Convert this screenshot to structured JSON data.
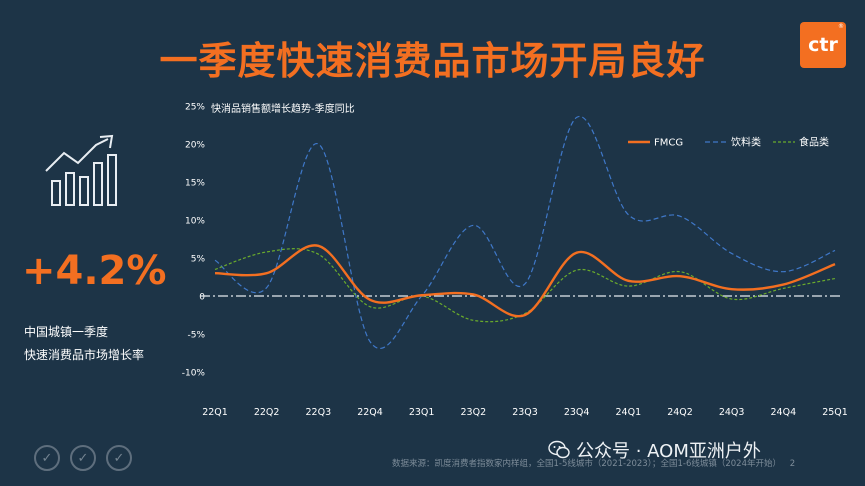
{
  "header": {
    "title": "一季度快速消费品市场开局良好",
    "logo_text": "ctr",
    "logo_mark": "®"
  },
  "left_panel": {
    "growth_icon": "bar-growth-arrow-icon",
    "big_value": "+4.2%",
    "desc_line1": "中国城镇一季度",
    "desc_line2": "快速消费品市场增长率"
  },
  "footer": {
    "source": "数据来源：凯度消费者指数家内样组，全国1-5线城市（2021-2023）；全国1-6线城镇（2024年开始）",
    "page_number": "2",
    "watermark": "公众号 · AOM亚洲户外",
    "watermark_icon": "wechat-icon",
    "badges": [
      "✓",
      "✓",
      "✓"
    ]
  },
  "colors": {
    "accent": "#f36f21",
    "background": "#1d3447",
    "fmcg": "#f36f21",
    "beverage": "#3f78c9",
    "food": "#6aab2c"
  },
  "chart_data": {
    "type": "line",
    "title": "快消品销售额增长趋势-季度同比",
    "categories": [
      "22Q1",
      "22Q2",
      "22Q3",
      "22Q4",
      "23Q1",
      "23Q2",
      "23Q3",
      "23Q4",
      "24Q1",
      "24Q2",
      "24Q3",
      "24Q4",
      "25Q1"
    ],
    "y_ticks": [
      "25%",
      "20%",
      "15%",
      "10%",
      "5%",
      "0",
      "-5%",
      "-10%"
    ],
    "ylim": [
      -10,
      25
    ],
    "legend_position": "top-right",
    "series": [
      {
        "name": "FMCG",
        "style": "solid",
        "values": [
          3.0,
          3.0,
          6.6,
          -0.5,
          0.1,
          0.2,
          -2.5,
          5.7,
          2.0,
          2.6,
          0.9,
          1.5,
          4.2
        ]
      },
      {
        "name": "饮料类",
        "style": "dashed",
        "values": [
          4.7,
          1.1,
          20.0,
          -6.0,
          0.0,
          9.3,
          1.6,
          23.5,
          10.7,
          10.5,
          5.6,
          3.2,
          6.0
        ]
      },
      {
        "name": "食品类",
        "style": "dashed",
        "values": [
          3.5,
          5.8,
          5.5,
          -1.4,
          0.0,
          -3.2,
          -2.3,
          3.4,
          1.3,
          3.2,
          -0.4,
          1.0,
          2.3
        ]
      }
    ]
  }
}
